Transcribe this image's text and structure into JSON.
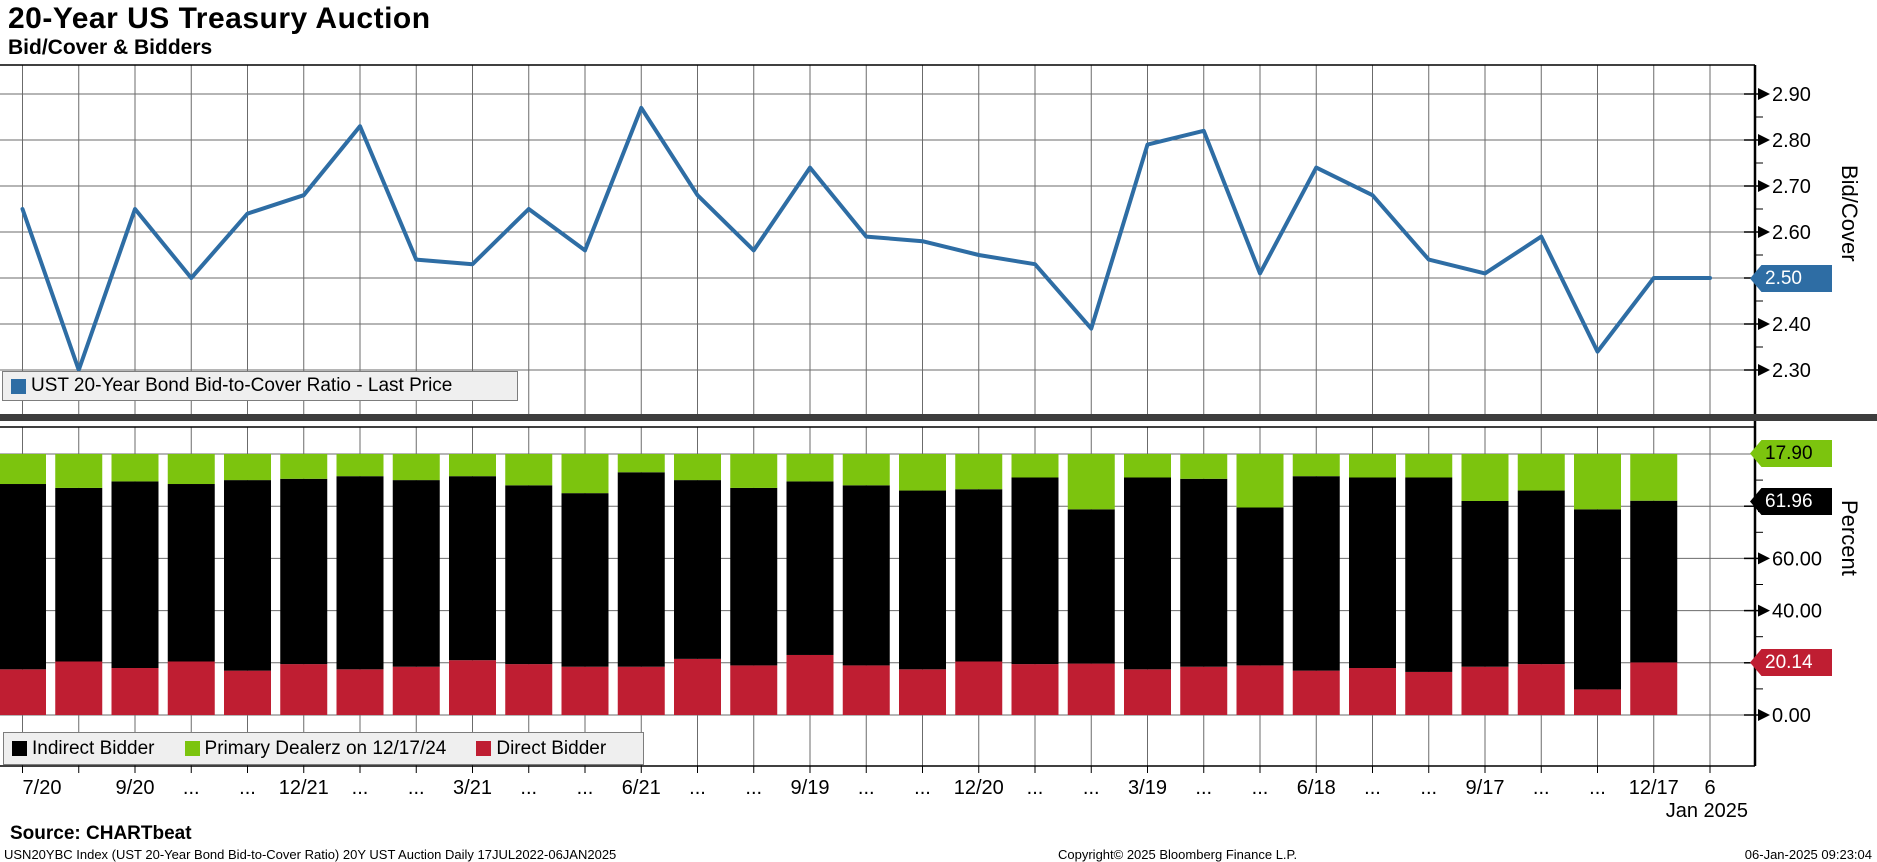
{
  "title": "20-Year US Treasury Auction",
  "subtitle": "Bid/Cover & Bidders",
  "colors": {
    "line_blue": "#2e6da4",
    "dealer_green": "#7cc40e",
    "direct_red": "#bf1e32",
    "indirect_black": "#000000",
    "grid": "#6b6b6b",
    "panel_separator": "#3d3d3d",
    "legend_bg": "#efefef"
  },
  "top_panel": {
    "legend_label": "UST 20-Year Bond Bid-to-Cover Ratio - Last Price",
    "axis_title": "Bid/Cover",
    "y_tick_labels": [
      "2.90",
      "2.80",
      "2.70",
      "2.60",
      "2.50",
      "2.40",
      "2.30"
    ],
    "last_price_tag": "2.50"
  },
  "bottom_panel": {
    "axis_title": "Percent",
    "y_tick_labels": [
      "60.00",
      "40.00",
      "0.00"
    ],
    "tags": {
      "dealer_last": "17.90",
      "indirect_last": "61.96",
      "direct_last": "20.14"
    },
    "legend": [
      {
        "label": "Indirect Bidder",
        "color_key": "indirect_black"
      },
      {
        "label": "Primary Dealerz on 12/17/24",
        "color_key": "dealer_green"
      },
      {
        "label": "Direct Bidder",
        "color_key": "direct_red"
      }
    ]
  },
  "x_axis": {
    "labels": [
      "7/20",
      "",
      "9/20",
      "...",
      "...",
      "12/21",
      "...",
      "...",
      "3/21",
      "...",
      "...",
      "6/21",
      "...",
      "...",
      "9/19",
      "...",
      "...",
      "12/20",
      "...",
      "...",
      "3/19",
      "...",
      "...",
      "6/18",
      "...",
      "...",
      "9/17",
      "...",
      "...",
      "12/17",
      "6"
    ],
    "year_label": "Jan 2025"
  },
  "footer": {
    "source": "Source: CHARTbeat",
    "index_line": "USN20YBC Index (UST 20-Year Bond Bid-to-Cover Ratio) 20Y UST Auction  Daily 17JUL2022-06JAN2025",
    "copyright": "Copyright© 2025 Bloomberg Finance L.P.",
    "timestamp": "06-Jan-2025 09:23:04"
  },
  "chart_data": [
    {
      "type": "line",
      "name": "UST 20-Year Bond Bid-to-Cover Ratio - Last Price",
      "ylabel": "Bid/Cover",
      "ylim": [
        2.25,
        2.96
      ],
      "grid": true,
      "legend_position": "bottom-left",
      "x": [
        "7/20/22",
        "8/17/22",
        "9/20/22",
        "10/19/22",
        "11/16/22",
        "12/21/22",
        "1/18/23",
        "2/15/23",
        "3/21/23",
        "4/19/23",
        "5/17/23",
        "6/21/23",
        "7/19/23",
        "8/16/23",
        "9/19/23",
        "10/18/23",
        "11/20/23",
        "12/20/23",
        "1/17/24",
        "2/21/24",
        "3/19/24",
        "4/17/24",
        "5/22/24",
        "6/18/24",
        "7/17/24",
        "8/21/24",
        "9/17/24",
        "10/16/24",
        "11/19/24",
        "12/17/24",
        "1/6/25"
      ],
      "values": [
        2.65,
        2.3,
        2.65,
        2.5,
        2.64,
        2.68,
        2.83,
        2.54,
        2.53,
        2.65,
        2.56,
        2.87,
        2.68,
        2.56,
        2.74,
        2.59,
        2.58,
        2.55,
        2.53,
        2.39,
        2.79,
        2.82,
        2.51,
        2.74,
        2.68,
        2.54,
        2.51,
        2.59,
        2.34,
        2.5,
        2.5
      ],
      "last_price": 2.5
    },
    {
      "type": "bar",
      "stacked": true,
      "ylabel": "Percent",
      "ylim": [
        0,
        100
      ],
      "grid": true,
      "legend_position": "bottom-left",
      "categories": [
        "7/20/22",
        "8/17/22",
        "9/20/22",
        "10/19/22",
        "11/16/22",
        "12/21/22",
        "1/18/23",
        "2/15/23",
        "3/21/23",
        "4/19/23",
        "5/17/23",
        "6/21/23",
        "7/19/23",
        "8/16/23",
        "9/19/23",
        "10/18/23",
        "11/20/23",
        "12/20/23",
        "1/17/24",
        "2/21/24",
        "3/19/24",
        "4/17/24",
        "5/22/24",
        "6/18/24",
        "7/17/24",
        "8/21/24",
        "9/17/24",
        "10/16/24",
        "11/19/24",
        "12/17/24"
      ],
      "series": [
        {
          "name": "Direct Bidder",
          "color_key": "direct_red",
          "values": [
            17.5,
            20.5,
            18.0,
            20.5,
            17.0,
            19.5,
            17.5,
            18.5,
            21.0,
            19.5,
            18.5,
            18.5,
            21.5,
            19.0,
            23.0,
            19.0,
            17.5,
            20.5,
            19.5,
            19.7,
            17.5,
            18.5,
            19.0,
            17.0,
            18.0,
            16.5,
            18.5,
            19.5,
            9.8,
            20.14
          ]
        },
        {
          "name": "Indirect Bidder",
          "color_key": "indirect_black",
          "values": [
            71.0,
            66.5,
            71.5,
            68.0,
            73.0,
            71.0,
            74.0,
            71.5,
            70.5,
            68.5,
            66.5,
            74.5,
            68.5,
            68.0,
            66.5,
            69.0,
            68.5,
            66.0,
            71.5,
            59.1,
            73.5,
            72.0,
            60.5,
            74.5,
            73.0,
            74.5,
            63.5,
            66.5,
            69.0,
            61.96
          ]
        },
        {
          "name": "Primary Dealerz on 12/17/24",
          "color_key": "dealer_green",
          "values": [
            11.5,
            13.0,
            10.5,
            11.5,
            10.0,
            9.5,
            8.5,
            10.0,
            8.5,
            12.0,
            15.0,
            7.0,
            10.0,
            13.0,
            10.5,
            12.0,
            14.0,
            13.5,
            9.0,
            21.2,
            9.0,
            9.5,
            20.5,
            8.5,
            9.0,
            9.0,
            18.0,
            14.0,
            21.2,
            17.9
          ]
        }
      ]
    }
  ]
}
